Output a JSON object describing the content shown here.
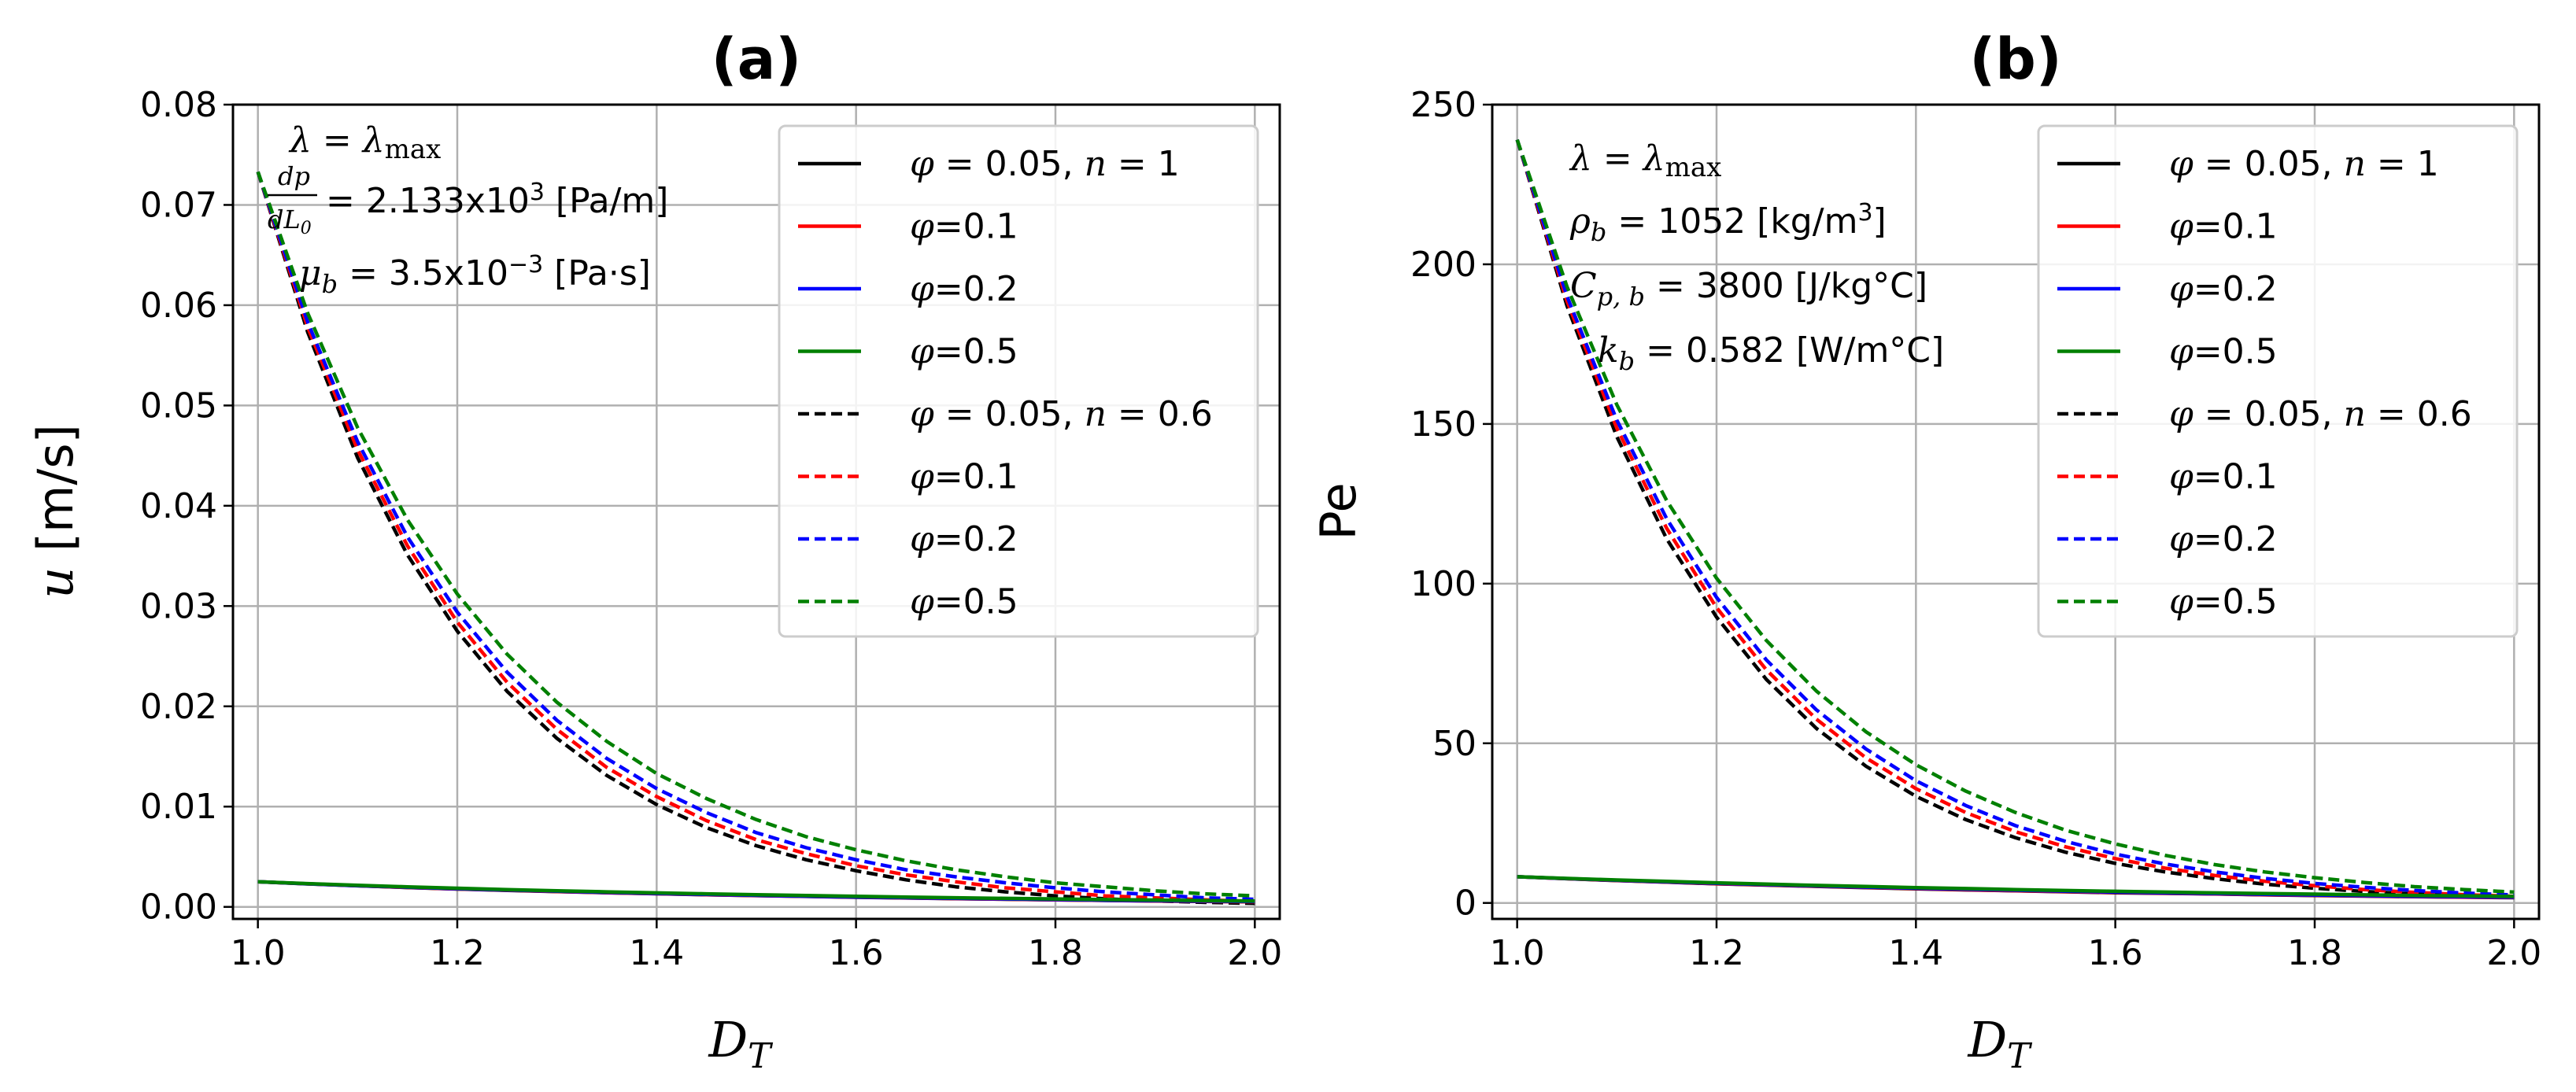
{
  "chart_data": [
    {
      "type": "line",
      "panel": "a",
      "title": "(a)",
      "xlabel": "D_T",
      "ylabel": "u [m/s]",
      "xlim": [
        0.975,
        2.025
      ],
      "ylim": [
        -0.0012,
        0.08
      ],
      "xticks": [
        1.0,
        1.2,
        1.4,
        1.6,
        1.8,
        2.0
      ],
      "xtick_labels": [
        "1.0",
        "1.2",
        "1.4",
        "1.6",
        "1.8",
        "2.0"
      ],
      "yticks": [
        0.0,
        0.01,
        0.02,
        0.03,
        0.04,
        0.05,
        0.06,
        0.07,
        0.08
      ],
      "ytick_labels": [
        "0.00",
        "0.01",
        "0.02",
        "0.03",
        "0.04",
        "0.05",
        "0.06",
        "0.07",
        "0.08"
      ],
      "grid": true,
      "legend_position": "top-right",
      "annotations": [
        "λ = λmax",
        "dp/dL0 = 2.133x10^3 [Pa/m]",
        "μb = 3.5x10^-3 [Pa·s]"
      ],
      "x": [
        1.0,
        1.05,
        1.1,
        1.15,
        1.2,
        1.25,
        1.3,
        1.35,
        1.4,
        1.45,
        1.5,
        1.55,
        1.6,
        1.65,
        1.7,
        1.75,
        1.8,
        1.85,
        1.9,
        1.95,
        2.0
      ],
      "series": [
        {
          "name": "φ = 0.05, n = 1",
          "color": "#000000",
          "dash": "solid",
          "values": [
            0.0025,
            0.00229,
            0.0021,
            0.00193,
            0.00178,
            0.00165,
            0.00153,
            0.00141,
            0.00131,
            0.00121,
            0.00112,
            0.00104,
            0.00096,
            0.00089,
            0.00082,
            0.00076,
            0.0007,
            0.00064,
            0.00059,
            0.00054,
            0.0005
          ]
        },
        {
          "name": "φ=0.1",
          "color": "#ff0000",
          "dash": "solid",
          "values": [
            0.0025,
            0.0023,
            0.00211,
            0.00194,
            0.00179,
            0.00166,
            0.00154,
            0.00142,
            0.00132,
            0.00122,
            0.00113,
            0.00105,
            0.00097,
            0.0009,
            0.00083,
            0.00077,
            0.00071,
            0.00065,
            0.0006,
            0.00055,
            0.00051
          ]
        },
        {
          "name": "φ=0.2",
          "color": "#0000ff",
          "dash": "solid",
          "values": [
            0.0025,
            0.0023,
            0.00212,
            0.00196,
            0.00181,
            0.00168,
            0.00156,
            0.00144,
            0.00134,
            0.00124,
            0.00115,
            0.00107,
            0.00099,
            0.00092,
            0.00085,
            0.00079,
            0.00073,
            0.00067,
            0.00062,
            0.00057,
            0.00053
          ]
        },
        {
          "name": "φ=0.5",
          "color": "#008000",
          "dash": "solid",
          "values": [
            0.0025,
            0.00232,
            0.00215,
            0.002,
            0.00186,
            0.00173,
            0.00161,
            0.0015,
            0.0014,
            0.0013,
            0.00121,
            0.00113,
            0.00105,
            0.00098,
            0.00091,
            0.00085,
            0.00079,
            0.00073,
            0.00068,
            0.00063,
            0.00059
          ]
        },
        {
          "name": "φ = 0.05, n = 0.6",
          "color": "#000000",
          "dash": "dashed",
          "values": [
            0.0733,
            0.0573,
            0.0448,
            0.0351,
            0.0275,
            0.0215,
            0.0168,
            0.0131,
            0.0102,
            0.0079,
            0.0061,
            0.0047,
            0.0036,
            0.0027,
            0.002,
            0.0015,
            0.0011,
            0.0008,
            0.0006,
            0.00045,
            0.00035
          ]
        },
        {
          "name": "φ=0.1",
          "color": "#ff0000",
          "dash": "dashed",
          "values": [
            0.0733,
            0.0578,
            0.0456,
            0.036,
            0.0284,
            0.0224,
            0.0177,
            0.0139,
            0.011,
            0.0086,
            0.0067,
            0.0053,
            0.0041,
            0.0032,
            0.0025,
            0.0019,
            0.0015,
            0.0011,
            0.0009,
            0.0007,
            0.00055
          ]
        },
        {
          "name": "φ=0.2",
          "color": "#0000ff",
          "dash": "dashed",
          "values": [
            0.0733,
            0.0583,
            0.0464,
            0.0369,
            0.0294,
            0.0234,
            0.0186,
            0.0148,
            0.0118,
            0.0094,
            0.0074,
            0.0059,
            0.0047,
            0.0037,
            0.003,
            0.0024,
            0.0019,
            0.0015,
            0.0012,
            0.0009,
            0.00075
          ]
        },
        {
          "name": "φ=0.5",
          "color": "#008000",
          "dash": "dashed",
          "values": [
            0.0733,
            0.0592,
            0.0478,
            0.0386,
            0.0312,
            0.0252,
            0.0204,
            0.0165,
            0.0133,
            0.0108,
            0.0087,
            0.007,
            0.0057,
            0.0046,
            0.0037,
            0.003,
            0.0024,
            0.002,
            0.0016,
            0.0013,
            0.0011
          ]
        }
      ]
    },
    {
      "type": "line",
      "panel": "b",
      "title": "(b)",
      "xlabel": "D_T",
      "ylabel": "Pe",
      "xlim": [
        0.975,
        2.025
      ],
      "ylim": [
        -5,
        250
      ],
      "xticks": [
        1.0,
        1.2,
        1.4,
        1.6,
        1.8,
        2.0
      ],
      "xtick_labels": [
        "1.0",
        "1.2",
        "1.4",
        "1.6",
        "1.8",
        "2.0"
      ],
      "yticks": [
        0,
        50,
        100,
        150,
        200,
        250
      ],
      "ytick_labels": [
        "0",
        "50",
        "100",
        "150",
        "200",
        "250"
      ],
      "grid": true,
      "legend_position": "top-right",
      "annotations": [
        "λ = λmax",
        "ρb = 1052 [kg/m^3]",
        "Cp,b = 3800 [J/kg°C]",
        "kb = 0.582 [W/m°C]"
      ],
      "x": [
        1.0,
        1.05,
        1.1,
        1.15,
        1.2,
        1.25,
        1.3,
        1.35,
        1.4,
        1.45,
        1.5,
        1.55,
        1.6,
        1.65,
        1.7,
        1.75,
        1.8,
        1.85,
        1.9,
        1.95,
        2.0
      ],
      "series": [
        {
          "name": "φ = 0.05, n = 1",
          "color": "#000000",
          "dash": "solid",
          "values": [
            8.2,
            7.6,
            7.0,
            6.5,
            6.0,
            5.6,
            5.2,
            4.8,
            4.4,
            4.1,
            3.8,
            3.5,
            3.2,
            3.0,
            2.8,
            2.55,
            2.35,
            2.15,
            1.95,
            1.8,
            1.65
          ]
        },
        {
          "name": "φ=0.1",
          "color": "#ff0000",
          "dash": "solid",
          "values": [
            8.2,
            7.6,
            7.05,
            6.55,
            6.05,
            5.65,
            5.25,
            4.85,
            4.5,
            4.15,
            3.85,
            3.55,
            3.3,
            3.05,
            2.85,
            2.6,
            2.4,
            2.2,
            2.0,
            1.85,
            1.7
          ]
        },
        {
          "name": "φ=0.2",
          "color": "#0000ff",
          "dash": "solid",
          "values": [
            8.2,
            7.65,
            7.1,
            6.6,
            6.15,
            5.75,
            5.35,
            4.95,
            4.6,
            4.3,
            4.0,
            3.7,
            3.4,
            3.15,
            2.95,
            2.7,
            2.5,
            2.3,
            2.1,
            1.95,
            1.8
          ]
        },
        {
          "name": "φ=0.5",
          "color": "#008000",
          "dash": "solid",
          "values": [
            8.2,
            7.7,
            7.2,
            6.75,
            6.3,
            5.9,
            5.5,
            5.15,
            4.8,
            4.5,
            4.2,
            3.9,
            3.65,
            3.4,
            3.15,
            2.95,
            2.75,
            2.55,
            2.35,
            2.2,
            2.05
          ]
        },
        {
          "name": "φ = 0.05, n = 0.6",
          "color": "#000000",
          "dash": "dashed",
          "values": [
            239.0,
            187.0,
            146.0,
            114.0,
            89.5,
            70.0,
            54.7,
            42.8,
            33.4,
            26.1,
            20.4,
            15.9,
            12.4,
            9.7,
            7.6,
            5.9,
            4.6,
            3.6,
            2.8,
            2.2,
            1.7
          ]
        },
        {
          "name": "φ=0.1",
          "color": "#ff0000",
          "dash": "dashed",
          "values": [
            239.0,
            188.5,
            148.7,
            117.3,
            92.5,
            73.0,
            57.6,
            45.4,
            35.8,
            28.3,
            22.3,
            17.6,
            13.9,
            10.9,
            8.6,
            6.8,
            5.4,
            4.2,
            3.3,
            2.6,
            2.1
          ]
        },
        {
          "name": "φ=0.2",
          "color": "#0000ff",
          "dash": "dashed",
          "values": [
            239.0,
            190.0,
            151.2,
            120.3,
            95.7,
            76.1,
            60.5,
            48.2,
            38.3,
            30.5,
            24.2,
            19.3,
            15.3,
            12.2,
            9.7,
            7.7,
            6.1,
            4.9,
            3.9,
            3.1,
            2.5
          ]
        },
        {
          "name": "φ=0.5",
          "color": "#008000",
          "dash": "dashed",
          "values": [
            239.0,
            193.0,
            156.0,
            126.0,
            101.7,
            82.2,
            66.4,
            53.6,
            43.3,
            35.0,
            28.3,
            22.8,
            18.5,
            14.9,
            12.0,
            9.7,
            7.9,
            6.4,
            5.1,
            4.2,
            3.4
          ]
        }
      ]
    }
  ]
}
